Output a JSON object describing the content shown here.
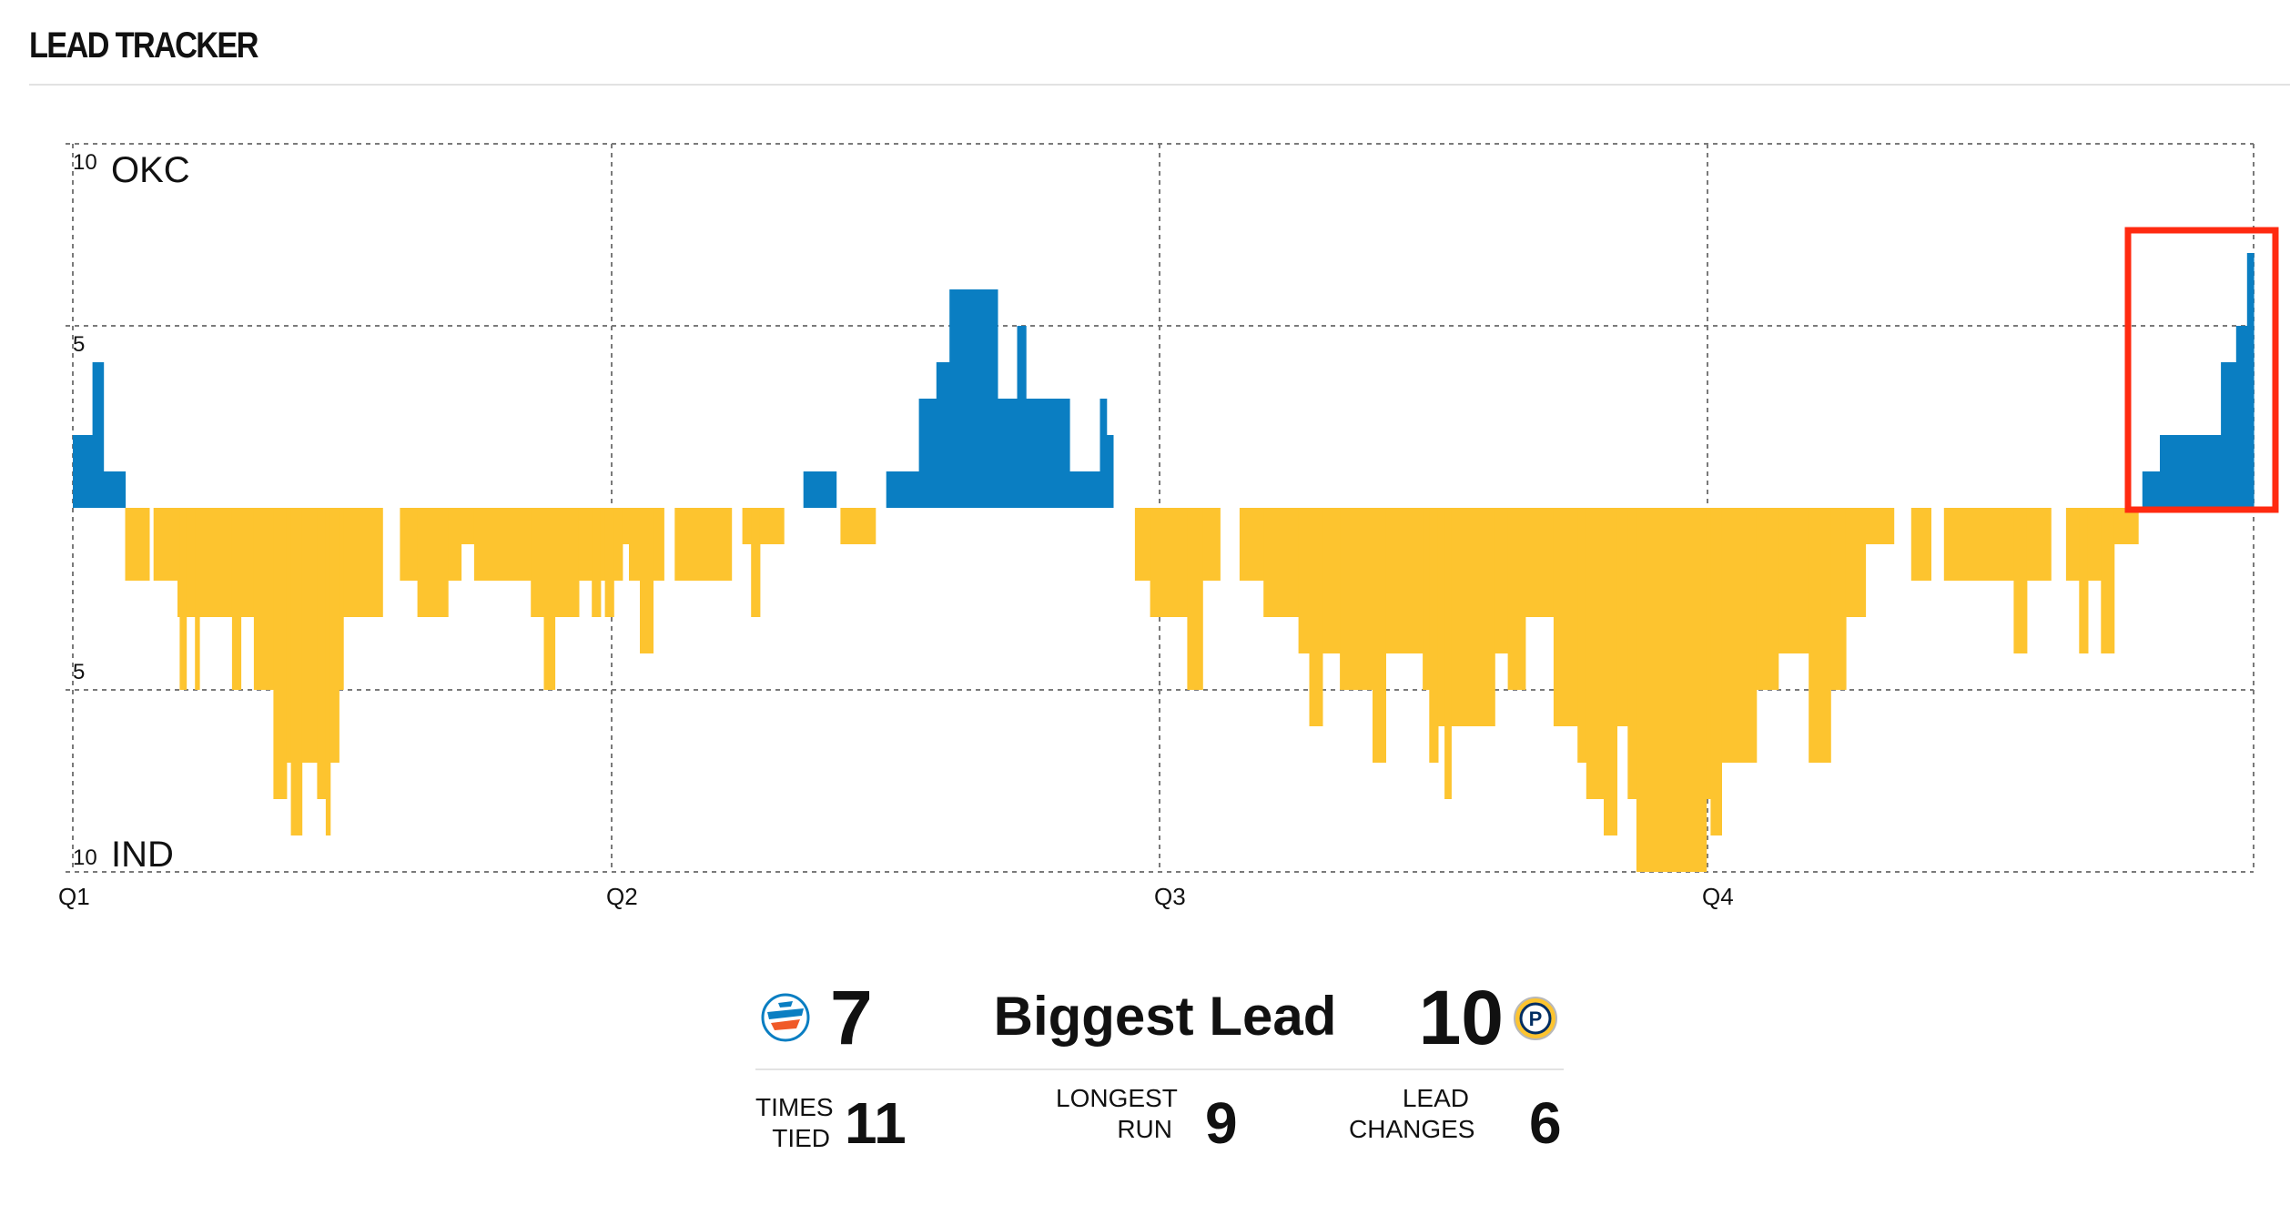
{
  "header": {
    "title": "LEAD TRACKER"
  },
  "colors": {
    "okc": "#0a7ec2",
    "ind": "#fdc42f",
    "grid": "#7a7a7a",
    "highlight": "#ff2a10"
  },
  "chart_data": {
    "type": "bar",
    "title": "",
    "y_top_label": "OKC",
    "y_bottom_label": "IND",
    "y_ticks": [
      "10",
      "5",
      "5",
      "10"
    ],
    "x_ticks": [
      "Q1",
      "Q2",
      "Q3",
      "Q4"
    ],
    "ylim": [
      -10,
      10
    ],
    "xlim": [
      0,
      48
    ],
    "x_unit": "game minutes",
    "value_meaning": "positive = OKC lead, negative = IND lead (points)",
    "grid": true,
    "series": [
      {
        "name": "OKC",
        "color": "#0a7ec2"
      },
      {
        "name": "IND",
        "color": "#fdc42f"
      }
    ],
    "segments": [
      [
        0.0,
        2
      ],
      [
        0.45,
        4
      ],
      [
        0.7,
        1
      ],
      [
        1.2,
        0
      ],
      [
        1.2,
        -2
      ],
      [
        1.75,
        0
      ],
      [
        1.85,
        -2
      ],
      [
        2.4,
        -3
      ],
      [
        2.45,
        -5
      ],
      [
        2.6,
        -3
      ],
      [
        2.8,
        -5
      ],
      [
        2.9,
        -3
      ],
      [
        3.65,
        -5
      ],
      [
        3.85,
        -3
      ],
      [
        4.15,
        -5
      ],
      [
        4.6,
        -8
      ],
      [
        4.9,
        -7
      ],
      [
        5.0,
        -9
      ],
      [
        5.25,
        -7
      ],
      [
        5.6,
        -8
      ],
      [
        5.8,
        -9
      ],
      [
        5.9,
        -7
      ],
      [
        6.1,
        -5
      ],
      [
        6.2,
        -3
      ],
      [
        7.1,
        0
      ],
      [
        7.5,
        -2
      ],
      [
        7.9,
        -3
      ],
      [
        8.6,
        -2
      ],
      [
        8.9,
        -1
      ],
      [
        9.2,
        -2
      ],
      [
        10.5,
        -3
      ],
      [
        10.8,
        -5
      ],
      [
        11.05,
        -3
      ],
      [
        11.6,
        -2
      ],
      [
        11.9,
        -3
      ],
      [
        12.1,
        -2
      ],
      [
        12.2,
        -3
      ],
      [
        12.4,
        -2
      ],
      [
        12.6,
        -1
      ],
      [
        12.75,
        -2
      ],
      [
        13.0,
        -4
      ],
      [
        13.3,
        -2
      ],
      [
        13.55,
        0
      ],
      [
        13.8,
        -2
      ],
      [
        15.1,
        0
      ],
      [
        15.35,
        -1
      ],
      [
        15.55,
        -3
      ],
      [
        15.75,
        -1
      ],
      [
        16.3,
        0
      ],
      [
        16.75,
        1
      ],
      [
        17.5,
        0
      ],
      [
        17.6,
        -1
      ],
      [
        18.4,
        0
      ],
      [
        18.65,
        1
      ],
      [
        19.4,
        3
      ],
      [
        19.8,
        4
      ],
      [
        20.1,
        6
      ],
      [
        21.2,
        3
      ],
      [
        21.65,
        5
      ],
      [
        21.85,
        3
      ],
      [
        22.4,
        3
      ],
      [
        22.85,
        1
      ],
      [
        23.55,
        3
      ],
      [
        23.7,
        2
      ],
      [
        23.85,
        0
      ],
      [
        24.35,
        -2
      ],
      [
        24.7,
        -3
      ],
      [
        25.55,
        -5
      ],
      [
        25.9,
        -2
      ],
      [
        26.3,
        0
      ],
      [
        26.75,
        -2
      ],
      [
        27.3,
        -3
      ],
      [
        28.1,
        -4
      ],
      [
        28.35,
        -6
      ],
      [
        28.65,
        -4
      ],
      [
        29.05,
        -5
      ],
      [
        29.8,
        -7
      ],
      [
        30.1,
        -4
      ],
      [
        30.95,
        -5
      ],
      [
        31.1,
        -7
      ],
      [
        31.3,
        -6
      ],
      [
        31.45,
        -8
      ],
      [
        31.6,
        -6
      ],
      [
        32.6,
        -4
      ],
      [
        32.9,
        -5
      ],
      [
        33.3,
        -3
      ],
      [
        33.95,
        -6
      ],
      [
        34.5,
        -7
      ],
      [
        34.7,
        -8
      ],
      [
        35.1,
        -9
      ],
      [
        35.4,
        -6
      ],
      [
        35.65,
        -8
      ],
      [
        35.85,
        -10
      ],
      [
        37.45,
        -8
      ],
      [
        37.55,
        -9
      ],
      [
        37.8,
        -7
      ],
      [
        38.6,
        -5
      ],
      [
        39.1,
        -4
      ],
      [
        39.8,
        -7
      ],
      [
        40.3,
        -5
      ],
      [
        40.65,
        -3
      ],
      [
        41.1,
        -1
      ],
      [
        41.75,
        0
      ],
      [
        42.15,
        -2
      ],
      [
        42.6,
        0
      ],
      [
        42.9,
        -2
      ],
      [
        44.5,
        -4
      ],
      [
        44.8,
        -2
      ],
      [
        45.35,
        0
      ],
      [
        45.7,
        -2
      ],
      [
        46.0,
        -4
      ],
      [
        46.2,
        -2
      ],
      [
        46.5,
        -4
      ],
      [
        46.8,
        -1
      ],
      [
        47.35,
        0
      ],
      [
        47.45,
        1
      ],
      [
        47.85,
        2
      ],
      [
        49.25,
        4
      ],
      [
        49.6,
        5
      ],
      [
        49.85,
        7
      ],
      [
        49.95,
        7
      ]
    ],
    "annotations": [
      {
        "type": "highlight-box",
        "label": ""
      }
    ]
  },
  "summary": {
    "biggest_lead_label": "Biggest Lead",
    "okc_biggest_lead": "7",
    "ind_biggest_lead": "10",
    "stats": [
      {
        "label_line1": "TIMES",
        "label_line2": "TIED",
        "value": "11"
      },
      {
        "label_line1": "LONGEST",
        "label_line2": "RUN",
        "value": "9"
      },
      {
        "label_line1": "LEAD",
        "label_line2": "CHANGES",
        "value": "6"
      }
    ],
    "okc_logo_text": "THUNDER OKC",
    "ind_logo_text": "P"
  }
}
